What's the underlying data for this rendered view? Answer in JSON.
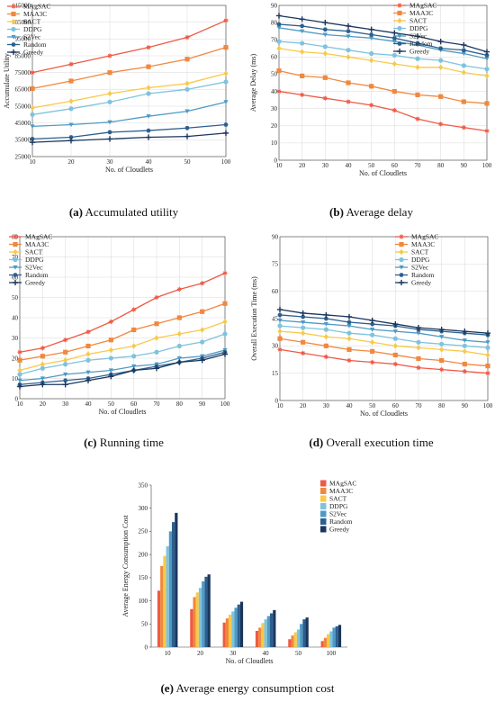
{
  "colors": {
    "MAgSAC": "#ee5a45",
    "MAA3C": "#f0883e",
    "SACT": "#f8c94a",
    "DDPG": "#7ec3de",
    "S2Vec": "#4f9ac4",
    "Random": "#2c5f8e",
    "Greedy": "#1b365d"
  },
  "markers": {
    "MAgSAC": "star",
    "MAA3C": "square",
    "SACT": "diamond",
    "DDPG": "circle",
    "S2Vec": "triangle",
    "Random": "hexagon",
    "Greedy": "cross"
  },
  "captions": [
    {
      "tag": "(a)",
      "text": "Accumulated utility"
    },
    {
      "tag": "(b)",
      "text": "Average delay"
    },
    {
      "tag": "(c)",
      "text": "Running time"
    },
    {
      "tag": "(d)",
      "text": "Overall execution time"
    },
    {
      "tag": "(e)",
      "text": "Average energy consumption cost"
    }
  ],
  "chart_data": [
    {
      "id": "a",
      "type": "line",
      "title": "",
      "xlabel": "No. of Cloudlets",
      "ylabel": "Accumulate Utility",
      "x": [
        10,
        20,
        30,
        40,
        50,
        100
      ],
      "x_ticks": [
        "10",
        "20",
        "30",
        "40",
        "50",
        "100"
      ],
      "ylim": [
        25000,
        115000
      ],
      "y_ticks": [
        25000,
        35000,
        45000,
        55000,
        65000,
        75000,
        85000,
        95000,
        105000,
        115000
      ],
      "grid": true,
      "legend": "top-left",
      "series": [
        {
          "name": "MAgSAC",
          "values": [
            75000,
            80000,
            85000,
            90000,
            96000,
            106000
          ]
        },
        {
          "name": "MAA3C",
          "values": [
            65500,
            70000,
            75000,
            78500,
            83000,
            90000
          ]
        },
        {
          "name": "SACT",
          "values": [
            54000,
            58000,
            62500,
            66000,
            68500,
            74500
          ]
        },
        {
          "name": "DDPG",
          "values": [
            50000,
            53500,
            57500,
            62500,
            65000,
            69500
          ]
        },
        {
          "name": "S2Vec",
          "values": [
            43000,
            44000,
            45500,
            49000,
            52000,
            57500
          ]
        },
        {
          "name": "Random",
          "values": [
            35500,
            36500,
            39500,
            40500,
            42000,
            44000
          ]
        },
        {
          "name": "Greedy",
          "values": [
            33500,
            34500,
            35500,
            36500,
            37000,
            39000
          ]
        }
      ]
    },
    {
      "id": "b",
      "type": "line",
      "title": "",
      "xlabel": "No. of Cloudlets",
      "ylabel": "Average Delay (ms)",
      "x": [
        10,
        20,
        30,
        40,
        50,
        60,
        70,
        80,
        90,
        100
      ],
      "x_ticks": [
        "10",
        "20",
        "30",
        "40",
        "50",
        "60",
        "70",
        "80",
        "90",
        "100"
      ],
      "ylim": [
        0,
        90
      ],
      "y_ticks": [
        0,
        10,
        20,
        30,
        40,
        50,
        60,
        70,
        80,
        90
      ],
      "grid": true,
      "legend": "top-right",
      "series": [
        {
          "name": "MAgSAC",
          "values": [
            40,
            38,
            36,
            34,
            32,
            29,
            24,
            21,
            19,
            17
          ]
        },
        {
          "name": "MAA3C",
          "values": [
            52,
            49,
            48,
            45,
            43,
            40,
            38,
            37,
            34,
            33
          ]
        },
        {
          "name": "SACT",
          "values": [
            65,
            63,
            62,
            60,
            58,
            56,
            54,
            54,
            51,
            49
          ]
        },
        {
          "name": "DDPG",
          "values": [
            69,
            68,
            66,
            64,
            62,
            61,
            59,
            58,
            55,
            53
          ]
        },
        {
          "name": "S2Vec",
          "values": [
            77,
            75,
            73,
            72,
            71,
            69,
            67,
            64,
            62,
            59
          ]
        },
        {
          "name": "Random",
          "values": [
            79,
            78,
            76,
            75,
            73,
            71,
            68,
            65,
            64,
            61
          ]
        },
        {
          "name": "Greedy",
          "values": [
            84,
            82,
            80,
            78,
            76,
            74,
            72,
            69,
            67,
            63
          ]
        }
      ]
    },
    {
      "id": "c",
      "type": "line",
      "title": "",
      "xlabel": "No. of Cloudlets",
      "ylabel": "Running Time (ms)",
      "x": [
        10,
        20,
        30,
        40,
        50,
        60,
        70,
        80,
        90,
        100
      ],
      "x_ticks": [
        "10",
        "20",
        "30",
        "40",
        "50",
        "60",
        "70",
        "80",
        "90",
        "100"
      ],
      "ylim": [
        0,
        80
      ],
      "y_ticks": [
        0,
        10,
        20,
        30,
        40,
        50,
        60,
        70,
        80
      ],
      "grid": true,
      "legend": "top-left",
      "series": [
        {
          "name": "MAgSAC",
          "values": [
            23,
            25,
            29,
            33,
            38,
            44,
            50,
            54,
            57,
            62
          ]
        },
        {
          "name": "MAA3C",
          "values": [
            19,
            21,
            23,
            26,
            29,
            34,
            37,
            40,
            43,
            47
          ]
        },
        {
          "name": "SACT",
          "values": [
            14,
            17,
            19,
            22,
            24,
            26,
            30,
            32,
            34,
            38
          ]
        },
        {
          "name": "DDPG",
          "values": [
            12,
            15,
            17,
            19,
            20,
            21,
            23,
            26,
            28,
            32
          ]
        },
        {
          "name": "S2Vec",
          "values": [
            9,
            10,
            12,
            13,
            14,
            16,
            17,
            20,
            21,
            24
          ]
        },
        {
          "name": "Random",
          "values": [
            7,
            8,
            9,
            10,
            12,
            14,
            16,
            18,
            20,
            23
          ]
        },
        {
          "name": "Greedy",
          "values": [
            6,
            7,
            7,
            9,
            11,
            14,
            15,
            18,
            19,
            22
          ]
        }
      ]
    },
    {
      "id": "d",
      "type": "line",
      "title": "",
      "xlabel": "No. of Cloudlets",
      "ylabel": "Overall Execution Time (ms)",
      "x": [
        10,
        20,
        30,
        40,
        50,
        60,
        70,
        80,
        90,
        100
      ],
      "x_ticks": [
        "10",
        "20",
        "30",
        "40",
        "50",
        "60",
        "70",
        "80",
        "90",
        "100"
      ],
      "ylim": [
        0,
        90
      ],
      "y_ticks": [
        0,
        15,
        30,
        45,
        60,
        75,
        90
      ],
      "grid": true,
      "legend": "top-right",
      "series": [
        {
          "name": "MAgSAC",
          "values": [
            28,
            26,
            24,
            22,
            21,
            20,
            18,
            17,
            16,
            15
          ]
        },
        {
          "name": "MAA3C",
          "values": [
            34,
            32,
            30,
            28,
            27,
            25,
            23,
            22,
            20,
            19
          ]
        },
        {
          "name": "SACT",
          "values": [
            38,
            37,
            35,
            34,
            32,
            30,
            29,
            28,
            27,
            25
          ]
        },
        {
          "name": "DDPG",
          "values": [
            41,
            40,
            39,
            37,
            36,
            34,
            32,
            31,
            30,
            29
          ]
        },
        {
          "name": "S2Vec",
          "values": [
            44,
            43,
            42,
            41,
            39,
            38,
            37,
            35,
            33,
            32
          ]
        },
        {
          "name": "Random",
          "values": [
            47,
            46,
            45,
            43,
            42,
            41,
            39,
            38,
            37,
            36
          ]
        },
        {
          "name": "Greedy",
          "values": [
            50,
            48,
            47,
            46,
            44,
            42,
            40,
            39,
            38,
            37
          ]
        }
      ]
    },
    {
      "id": "e",
      "type": "bar",
      "title": "",
      "xlabel": "No. of Cloudlets",
      "ylabel": "Average Energy Consumption Cost",
      "categories": [
        "10",
        "20",
        "30",
        "40",
        "50",
        "100"
      ],
      "ylim": [
        0,
        350
      ],
      "y_ticks": [
        0,
        50,
        100,
        150,
        200,
        250,
        300,
        350
      ],
      "grid": false,
      "legend": "top-right",
      "series": [
        {
          "name": "MAgSAC",
          "values": [
            122,
            82,
            53,
            35,
            17,
            13
          ]
        },
        {
          "name": "MAA3C",
          "values": [
            175,
            108,
            62,
            42,
            25,
            20
          ]
        },
        {
          "name": "SACT",
          "values": [
            197,
            118,
            70,
            52,
            32,
            28
          ]
        },
        {
          "name": "DDPG",
          "values": [
            218,
            128,
            77,
            60,
            38,
            34
          ]
        },
        {
          "name": "S2Vec",
          "values": [
            250,
            142,
            85,
            67,
            50,
            42
          ]
        },
        {
          "name": "Random",
          "values": [
            270,
            152,
            92,
            73,
            60,
            45
          ]
        },
        {
          "name": "Greedy",
          "values": [
            290,
            157,
            98,
            80,
            64,
            48
          ]
        }
      ]
    }
  ]
}
